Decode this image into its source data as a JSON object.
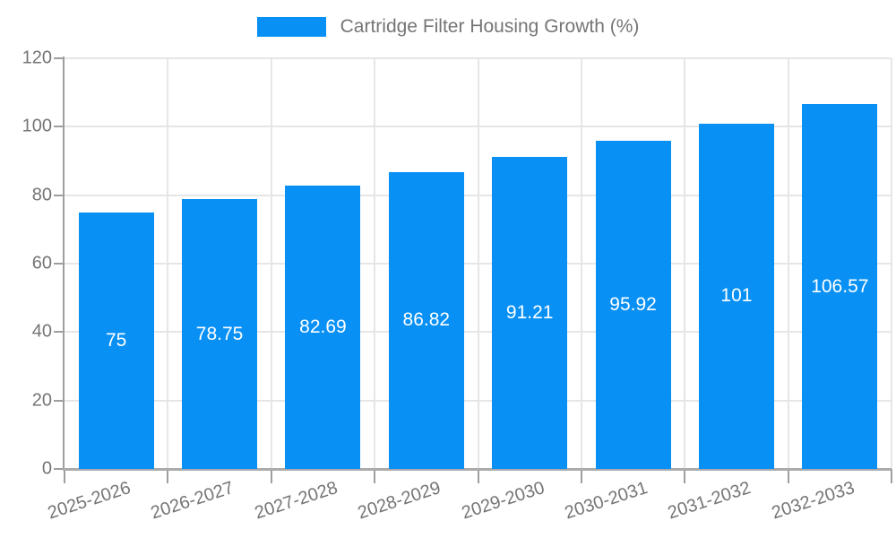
{
  "chart_data": {
    "type": "bar",
    "title": "Cartridge Filter Housing Growth (%)",
    "categories": [
      "2025-2026",
      "2026-2027",
      "2027-2028",
      "2028-2029",
      "2029-2030",
      "2030-2031",
      "2031-2032",
      "2032-2033"
    ],
    "values": [
      75,
      78.75,
      82.69,
      86.82,
      91.21,
      95.92,
      101,
      106.57
    ],
    "value_labels": [
      "75",
      "78.75",
      "82.69",
      "86.82",
      "91.21",
      "95.92",
      "101",
      "106.57"
    ],
    "xlabel": "",
    "ylabel": "",
    "ylim": [
      0,
      120
    ],
    "yticks": [
      0,
      20,
      40,
      60,
      80,
      100,
      120
    ],
    "grid": "on",
    "legend_position": "top-center",
    "value_label_position": "inside-center",
    "colors": {
      "bar": "#0890f5",
      "grid": "#e6e6e6",
      "axis": "#9e9e9e",
      "axis_bottom": "#ababab",
      "tick_text": "#757575",
      "legend_text": "#757575",
      "value_label": "#ffffff",
      "background": "#ffffff"
    }
  }
}
